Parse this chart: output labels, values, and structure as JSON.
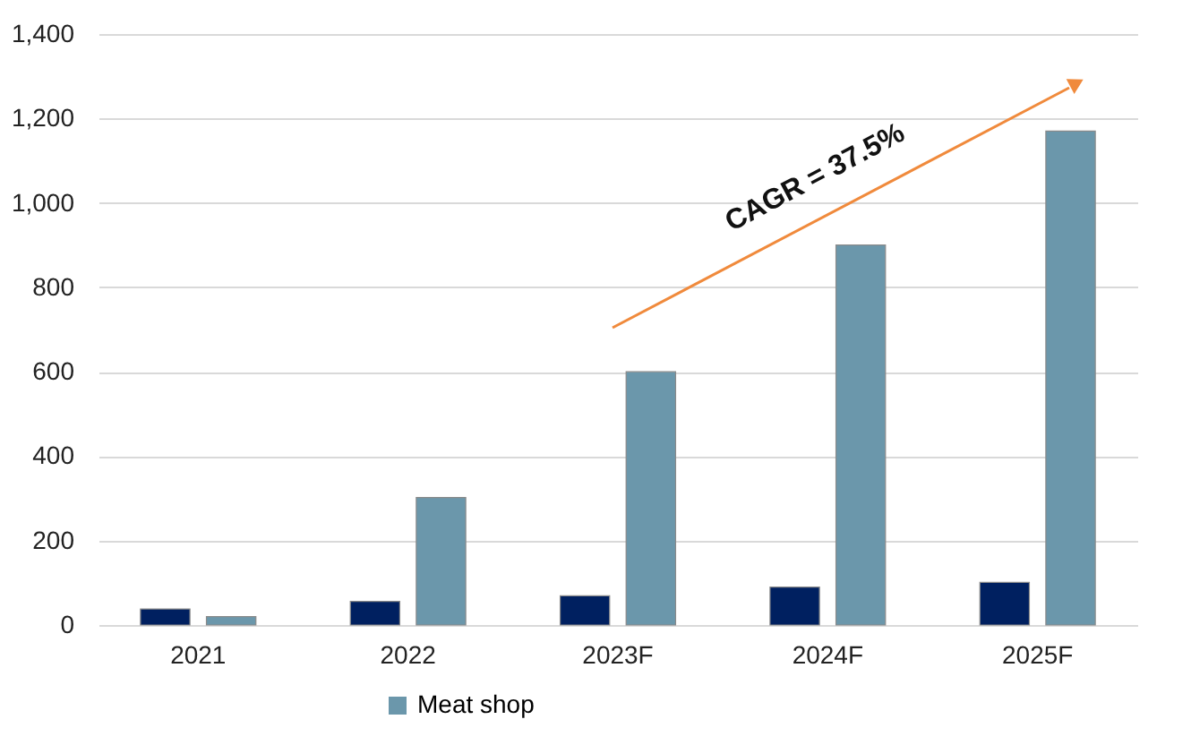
{
  "chart_data": {
    "type": "bar",
    "categories": [
      "2021",
      "2022",
      "2023F",
      "2024F",
      "2025F"
    ],
    "series": [
      {
        "color": "#002060",
        "values": [
          38,
          56,
          69,
          90,
          101
        ]
      },
      {
        "name": "Meat shop",
        "color": "#6b97ab",
        "values": [
          20,
          302,
          600,
          900,
          1170
        ]
      }
    ],
    "ylim": [
      0,
      1400
    ],
    "yticks": [
      0,
      200,
      400,
      600,
      800,
      {
        "value": 1000,
        "label": "1,000"
      },
      {
        "value": 1200,
        "label": "1,200"
      },
      {
        "value": 1400,
        "label": "1,400"
      }
    ],
    "grid": "y",
    "legend": "bottom",
    "annotations": [
      "CAGR = 37.5%"
    ]
  }
}
